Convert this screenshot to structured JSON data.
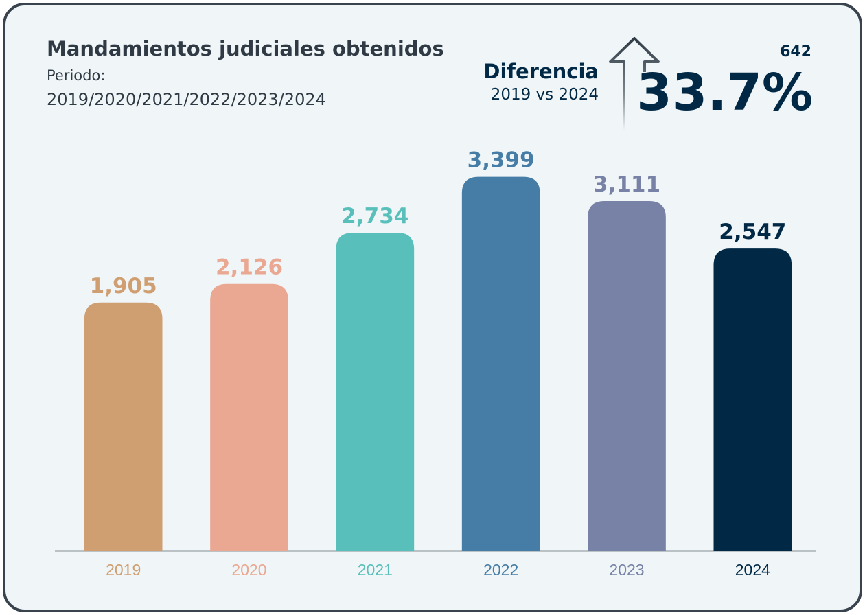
{
  "chart_data": {
    "type": "bar",
    "title": "Mandamientos judiciales obtenidos",
    "subtitle": [
      "Periodo:",
      "2019/2020/2021/2022/2023/2024"
    ],
    "annotation": {
      "label": "Diferencia",
      "sublabel": "2019 vs 2024",
      "difference": 642,
      "percent": "33.7%"
    },
    "categories": [
      "2019",
      "2020",
      "2021",
      "2022",
      "2023",
      "2024"
    ],
    "values": [
      1905,
      2126,
      2734,
      3399,
      3111,
      2547
    ],
    "value_labels": [
      "1,905",
      "2,126",
      "2,734",
      "3,399",
      "3,111",
      "2,547"
    ],
    "colors": [
      "#cf9f72",
      "#eaa791",
      "#58bfba",
      "#467da6",
      "#7782a6",
      "#012946"
    ],
    "ylim": [
      -1050,
      4000
    ]
  }
}
